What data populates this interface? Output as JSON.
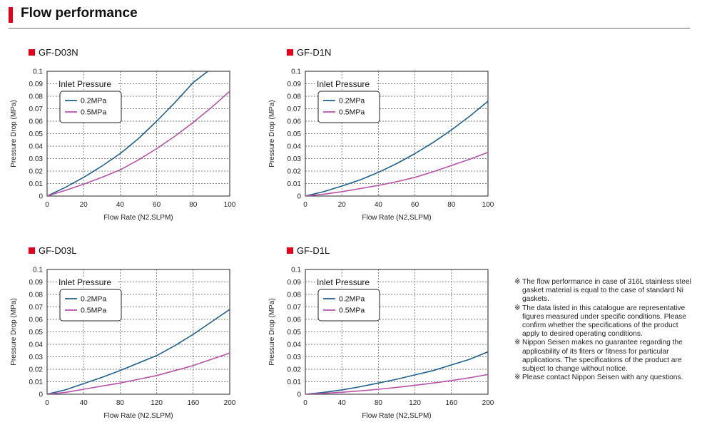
{
  "section": {
    "title": "Flow performance",
    "accent": "#e2001a"
  },
  "colors": {
    "series_02": "#1f5f8b",
    "series_05": "#b553a6",
    "title_square": "#e2001a"
  },
  "chart_data": [
    {
      "type": "line",
      "title": "GF-D03N",
      "xlabel": "Flow Rate (N2,SLPM)",
      "ylabel": "Pressure Drop (MPa)",
      "xlim": [
        0,
        100
      ],
      "ylim": [
        0,
        0.1
      ],
      "xticks": [
        0,
        20,
        40,
        60,
        80,
        100
      ],
      "xtick_labels": [
        "0",
        "20",
        "40",
        "60",
        "80",
        "100"
      ],
      "yticks": [
        0,
        0.01,
        0.02,
        0.03,
        0.04,
        0.05,
        0.06,
        0.07,
        0.08,
        0.09,
        0.1
      ],
      "ytick_labels": [
        "0",
        "0.01",
        "0.02",
        "0.03",
        "0.04",
        "0.05",
        "0.06",
        "0.07",
        "0.08",
        "0.09",
        "0.1"
      ],
      "grid": true,
      "legend_title": "Inlet Pressure",
      "legend_position": "top-left",
      "series": [
        {
          "name": "0.2MPa",
          "x": [
            0,
            10,
            20,
            30,
            40,
            50,
            60,
            70,
            80,
            88
          ],
          "y": [
            0,
            0.007,
            0.015,
            0.024,
            0.034,
            0.046,
            0.06,
            0.075,
            0.091,
            0.1
          ]
        },
        {
          "name": "0.5MPa",
          "x": [
            0,
            10,
            20,
            30,
            40,
            50,
            60,
            70,
            80,
            90,
            100
          ],
          "y": [
            0,
            0.0045,
            0.0095,
            0.015,
            0.021,
            0.029,
            0.038,
            0.048,
            0.059,
            0.071,
            0.084
          ]
        }
      ]
    },
    {
      "type": "line",
      "title": "GF-D1N",
      "xlabel": "Flow Rate (N2,SLPM)",
      "ylabel": "Pressure Drop (MPa)",
      "xlim": [
        0,
        100
      ],
      "ylim": [
        0,
        0.1
      ],
      "xticks": [
        0,
        20,
        40,
        60,
        80,
        100
      ],
      "xtick_labels": [
        "0",
        "20",
        "40",
        "60",
        "80",
        "100"
      ],
      "yticks": [
        0,
        0.01,
        0.02,
        0.03,
        0.04,
        0.05,
        0.06,
        0.07,
        0.08,
        0.09,
        0.1
      ],
      "ytick_labels": [
        "0",
        "0.01",
        "0.02",
        "0.03",
        "0.04",
        "0.05",
        "0.06",
        "0.07",
        "0.08",
        "0.09",
        "0.1"
      ],
      "grid": true,
      "legend_title": "Inlet Pressure",
      "legend_position": "top-left",
      "series": [
        {
          "name": "0.2MPa",
          "x": [
            0,
            10,
            20,
            30,
            40,
            50,
            60,
            70,
            80,
            90,
            100
          ],
          "y": [
            0,
            0.0035,
            0.008,
            0.013,
            0.019,
            0.026,
            0.034,
            0.043,
            0.053,
            0.064,
            0.076
          ]
        },
        {
          "name": "0.5MPa",
          "x": [
            0,
            10,
            20,
            30,
            40,
            50,
            60,
            70,
            80,
            90,
            100
          ],
          "y": [
            0,
            0.0015,
            0.0035,
            0.006,
            0.0085,
            0.0115,
            0.015,
            0.0195,
            0.0245,
            0.0295,
            0.035
          ]
        }
      ]
    },
    {
      "type": "line",
      "title": "GF-D03L",
      "xlabel": "Flow Rate (N2,SLPM)",
      "ylabel": "Pressure Drop (MPa)",
      "xlim": [
        0,
        200
      ],
      "ylim": [
        0,
        0.1
      ],
      "xticks": [
        0,
        40,
        80,
        120,
        160,
        200
      ],
      "xtick_labels": [
        "0",
        "40",
        "80",
        "120",
        "160",
        "200"
      ],
      "yticks": [
        0,
        0.01,
        0.02,
        0.03,
        0.04,
        0.05,
        0.06,
        0.07,
        0.08,
        0.09,
        0.1
      ],
      "ytick_labels": [
        "0",
        "0.01",
        "0.02",
        "0.03",
        "0.04",
        "0.05",
        "0.06",
        "0.07",
        "0.08",
        "0.09",
        "0.1"
      ],
      "grid": true,
      "legend_title": "Inlet Pressure",
      "legend_position": "top-left",
      "series": [
        {
          "name": "0.2MPa",
          "x": [
            0,
            20,
            40,
            60,
            80,
            100,
            120,
            140,
            160,
            180,
            200
          ],
          "y": [
            0,
            0.0035,
            0.0085,
            0.0135,
            0.019,
            0.025,
            0.031,
            0.039,
            0.048,
            0.058,
            0.068
          ]
        },
        {
          "name": "0.5MPa",
          "x": [
            0,
            20,
            40,
            60,
            80,
            100,
            120,
            140,
            160,
            180,
            200
          ],
          "y": [
            0,
            0.0015,
            0.004,
            0.0065,
            0.009,
            0.012,
            0.015,
            0.019,
            0.023,
            0.028,
            0.033
          ]
        }
      ]
    },
    {
      "type": "line",
      "title": "GF-D1L",
      "xlabel": "Flow Rate (N2,SLPM)",
      "ylabel": "Pressure Drop (MPa)",
      "xlim": [
        0,
        200
      ],
      "ylim": [
        0,
        0.1
      ],
      "xticks": [
        0,
        40,
        80,
        120,
        160,
        200
      ],
      "xtick_labels": [
        "0",
        "40",
        "80",
        "120",
        "160",
        "200"
      ],
      "yticks": [
        0,
        0.01,
        0.02,
        0.03,
        0.04,
        0.05,
        0.06,
        0.07,
        0.08,
        0.09,
        0.1
      ],
      "ytick_labels": [
        "0",
        "0.01",
        "0.02",
        "0.03",
        "0.04",
        "0.05",
        "0.06",
        "0.07",
        "0.08",
        "0.09",
        "0.1"
      ],
      "grid": true,
      "legend_title": "Inlet Pressure",
      "legend_position": "top-left",
      "series": [
        {
          "name": "0.2MPa",
          "x": [
            0,
            20,
            40,
            60,
            80,
            100,
            120,
            140,
            160,
            180,
            200
          ],
          "y": [
            0,
            0.0015,
            0.0035,
            0.006,
            0.009,
            0.012,
            0.0155,
            0.019,
            0.0235,
            0.028,
            0.034
          ]
        },
        {
          "name": "0.5MPa",
          "x": [
            0,
            20,
            40,
            60,
            80,
            100,
            120,
            140,
            160,
            180,
            200
          ],
          "y": [
            0,
            0.0007,
            0.0016,
            0.0027,
            0.004,
            0.0055,
            0.0072,
            0.009,
            0.011,
            0.0132,
            0.0158
          ]
        }
      ]
    }
  ],
  "notes": [
    {
      "mark": "※",
      "text": "The flow performance in case of 316L stainless steel gasket material is equal to the case of standard Ni gaskets."
    },
    {
      "mark": "※",
      "text": "The data listed in this catalogue are representative figures measured under specific conditions. Please confirm whether the specifications of the product apply to desired operating conditions."
    },
    {
      "mark": "※",
      "text": "Nippon Seisen makes no guarantee regarding the applicability of its fiters or fitness for particular applications. The specifications of the product are subject to change without notice."
    },
    {
      "mark": "※",
      "text": "Please contact Nippon Seisen with any questions."
    }
  ]
}
